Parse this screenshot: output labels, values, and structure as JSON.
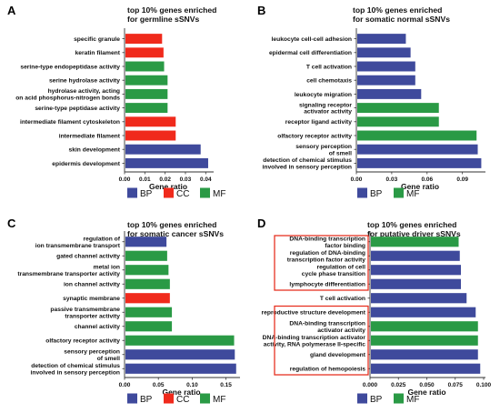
{
  "colors": {
    "BP": "#3f4a9c",
    "CC": "#f02a1c",
    "MF": "#2a9a45",
    "highlight_box": "#e63322",
    "axis": "#333333"
  },
  "chart_data": [
    {
      "type": "bar",
      "orientation": "horizontal",
      "panel": "A",
      "title": [
        "top 10% genes enriched",
        "for germline sSNVs"
      ],
      "xlabel": "Gene ratio",
      "xlim": [
        0,
        0.043
      ],
      "xticks": [
        "0.00",
        "0.01",
        "0.02",
        "0.03",
        "0.04"
      ],
      "xtick_values": [
        0,
        0.01,
        0.02,
        0.03,
        0.04
      ],
      "legend": [
        "BP",
        "CC",
        "MF"
      ],
      "categories": [
        [
          "specific granule"
        ],
        [
          "keratin filament"
        ],
        [
          "serine-type endopeptidase activity"
        ],
        [
          "serine hydrolase activity"
        ],
        [
          "hydrolase activity, acting",
          "on acid phosphorus-nitrogen bonds"
        ],
        [
          "serine-type peptidase activity"
        ],
        [
          "intermediate filament cytoskeleton"
        ],
        [
          "intermediate filament"
        ],
        [
          "skin development"
        ],
        [
          "epidermis development"
        ]
      ],
      "values": [
        0.0185,
        0.0192,
        0.0195,
        0.0212,
        0.0212,
        0.0212,
        0.0252,
        0.0252,
        0.0375,
        0.0412
      ],
      "groups": [
        "CC",
        "CC",
        "MF",
        "MF",
        "MF",
        "MF",
        "CC",
        "CC",
        "BP",
        "BP"
      ]
    },
    {
      "type": "bar",
      "orientation": "horizontal",
      "panel": "B",
      "title": [
        "top 10% genes enriched",
        "for somatic normal sSNVs"
      ],
      "xlabel": "Gene ratio",
      "xlim": [
        0,
        0.108
      ],
      "xticks": [
        "0.00",
        "0.03",
        "0.06",
        "0.09"
      ],
      "xtick_values": [
        0,
        0.03,
        0.06,
        0.09
      ],
      "legend": [
        "BP",
        "MF"
      ],
      "categories": [
        [
          "leukocyte cell-cell adhesion"
        ],
        [
          "epidermal cell differentiation"
        ],
        [
          "T cell activation"
        ],
        [
          "cell chemotaxis"
        ],
        [
          "leukocyte migration"
        ],
        [
          "signaling receptor",
          "activator activity"
        ],
        [
          "receptor ligand activity"
        ],
        [
          "olfactory receptor activity"
        ],
        [
          "sensory perception",
          "of smell"
        ],
        [
          "detection of chemical stimulus",
          "involved in sensory perception"
        ]
      ],
      "values": [
        0.042,
        0.046,
        0.05,
        0.05,
        0.055,
        0.07,
        0.07,
        0.102,
        0.103,
        0.106
      ],
      "groups": [
        "BP",
        "BP",
        "BP",
        "BP",
        "BP",
        "MF",
        "MF",
        "MF",
        "BP",
        "BP"
      ]
    },
    {
      "type": "bar",
      "orientation": "horizontal",
      "panel": "C",
      "title": [
        "top 10% genes enriched",
        "for somatic cancer sSNVs"
      ],
      "xlabel": "Gene ratio",
      "xlim": [
        0,
        0.168
      ],
      "xticks": [
        "0.00",
        "0.05",
        "0.10",
        "0.15"
      ],
      "xtick_values": [
        0,
        0.05,
        0.1,
        0.15
      ],
      "legend": [
        "BP",
        "CC",
        "MF"
      ],
      "categories": [
        [
          "regulation of",
          "ion transmembrane transport"
        ],
        [
          "gated channel activity"
        ],
        [
          "metal ion",
          "transmembrane transporter activity"
        ],
        [
          "ion channel activity"
        ],
        [
          "synaptic membrane"
        ],
        [
          "passive transmembrane",
          "transporter activity"
        ],
        [
          "channel activity"
        ],
        [
          "olfactory receptor activity"
        ],
        [
          "sensory perception",
          "of smell"
        ],
        [
          "detection of chemical stimulus",
          "involved in sensory perception"
        ]
      ],
      "values": [
        0.062,
        0.063,
        0.065,
        0.067,
        0.067,
        0.07,
        0.07,
        0.162,
        0.163,
        0.165
      ],
      "groups": [
        "BP",
        "MF",
        "MF",
        "MF",
        "CC",
        "MF",
        "MF",
        "MF",
        "BP",
        "BP"
      ]
    },
    {
      "type": "bar",
      "orientation": "horizontal",
      "panel": "D",
      "title": [
        "top 10% genes enriched",
        "for putative driver sSNVs"
      ],
      "xlabel": "Gene ratio",
      "xlim": [
        0,
        0.1
      ],
      "xticks": [
        "0.000",
        "0.025",
        "0.050",
        "0.075",
        "0.100"
      ],
      "xtick_values": [
        0,
        0.025,
        0.05,
        0.075,
        0.1
      ],
      "legend": [
        "BP",
        "MF"
      ],
      "categories": [
        [
          "DNA-binding transcription",
          "factor binding"
        ],
        [
          "regulation of DNA-binding",
          "transcription factor activity"
        ],
        [
          "regulation of cell",
          "cycle phase transition"
        ],
        [
          "lymphocyte differentiation"
        ],
        [
          "T cell activation"
        ],
        [
          "reproductive structure development"
        ],
        [
          "DNA-binding transcription",
          "activator activity"
        ],
        [
          "DNA-binding transcription activator",
          "activity, RNA polymerase II-specific"
        ],
        [
          "gland development"
        ],
        [
          "regulation of hemopoiesis"
        ]
      ],
      "values": [
        0.078,
        0.079,
        0.08,
        0.08,
        0.085,
        0.093,
        0.095,
        0.095,
        0.095,
        0.097
      ],
      "groups": [
        "MF",
        "BP",
        "BP",
        "BP",
        "BP",
        "BP",
        "MF",
        "MF",
        "BP",
        "BP"
      ],
      "highlight_groups": [
        [
          0,
          3
        ],
        [
          5,
          9
        ]
      ]
    }
  ]
}
